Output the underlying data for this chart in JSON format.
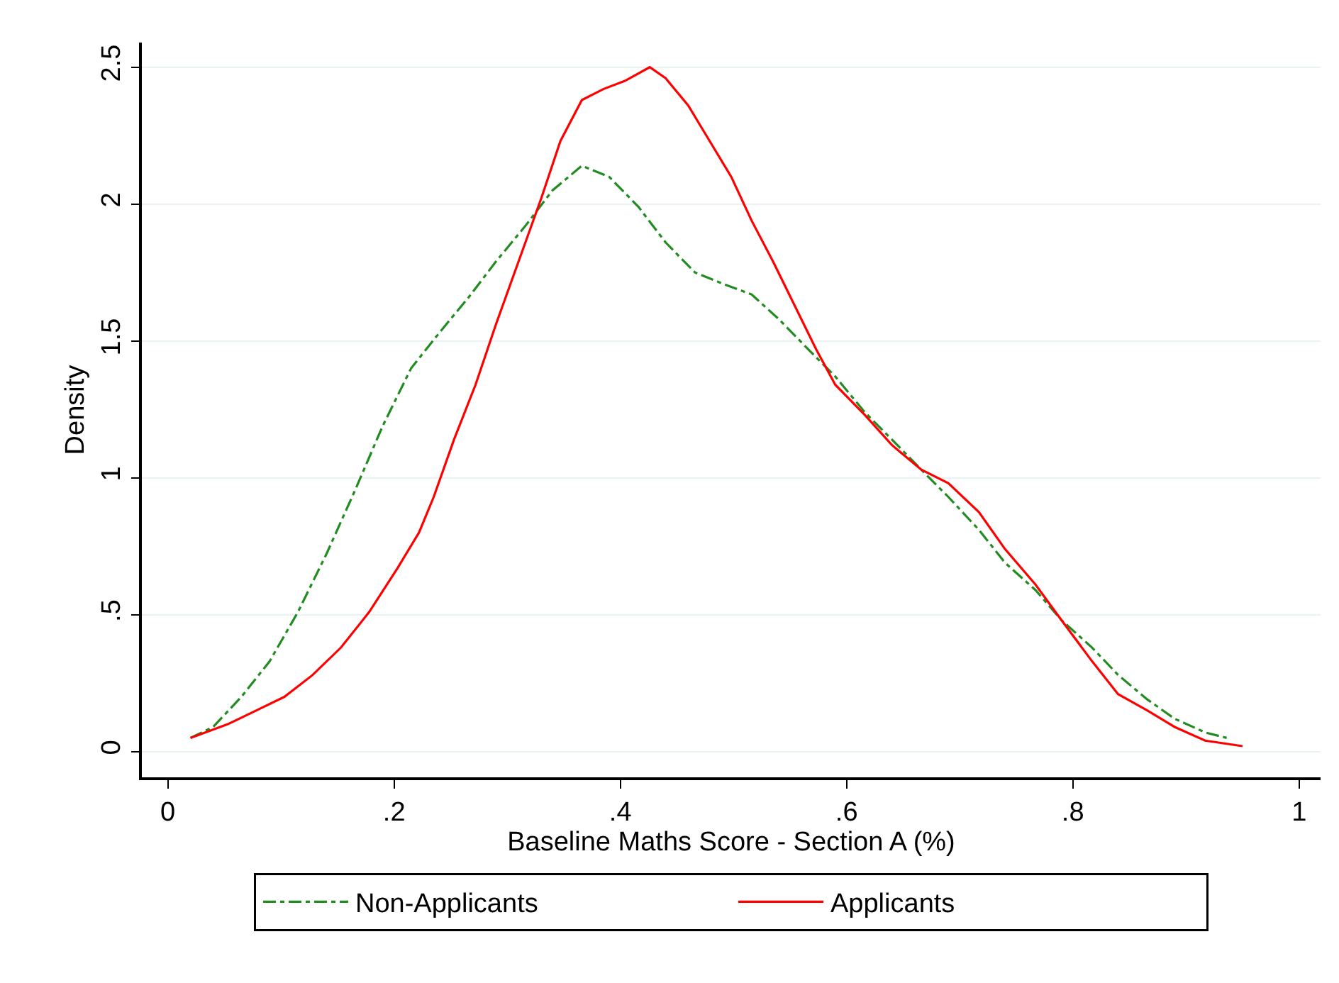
{
  "chart_data": {
    "type": "line",
    "xlabel": "Baseline Maths Score - Section A (%)",
    "ylabel": "Density",
    "xlim": [
      -0.023,
      1.019
    ],
    "ylim": [
      -0.094,
      2.59
    ],
    "xticks": [
      0,
      {
        "value": 0.2,
        "label": ".2"
      },
      {
        "value": 0.4,
        "label": ".4"
      },
      {
        "value": 0.6,
        "label": ".6"
      },
      {
        "value": 0.8,
        "label": ".8"
      },
      1
    ],
    "yticks": [
      0,
      {
        "value": 0.5,
        "label": ".5"
      },
      1,
      1.5,
      2,
      2.5
    ],
    "grid": "y",
    "legend": "bottom",
    "marker": "none",
    "series": [
      {
        "name": "Non-Applicants",
        "color": "#228b22",
        "line_style": "dashdot",
        "x": [
          0.02,
          0.04,
          0.065,
          0.09,
          0.115,
          0.14,
          0.165,
          0.19,
          0.215,
          0.24,
          0.266,
          0.29,
          0.316,
          0.34,
          0.366,
          0.39,
          0.416,
          0.44,
          0.466,
          0.49,
          0.516,
          0.54,
          0.566,
          0.59,
          0.616,
          0.64,
          0.666,
          0.69,
          0.717,
          0.74,
          0.767,
          0.79,
          0.817,
          0.84,
          0.866,
          0.89,
          0.917,
          0.936
        ],
        "values": [
          0.05,
          0.09,
          0.2,
          0.33,
          0.51,
          0.72,
          0.95,
          1.19,
          1.4,
          1.53,
          1.66,
          1.79,
          1.92,
          2.05,
          2.14,
          2.1,
          1.99,
          1.86,
          1.75,
          1.71,
          1.67,
          1.58,
          1.47,
          1.37,
          1.24,
          1.14,
          1.03,
          0.93,
          0.81,
          0.69,
          0.59,
          0.48,
          0.38,
          0.28,
          0.19,
          0.12,
          0.07,
          0.05
        ]
      },
      {
        "name": "Applicants",
        "color": "#ff0000",
        "line_style": "solid",
        "x": [
          0.02,
          0.053,
          0.078,
          0.103,
          0.128,
          0.153,
          0.178,
          0.203,
          0.222,
          0.235,
          0.253,
          0.272,
          0.29,
          0.31,
          0.33,
          0.347,
          0.366,
          0.385,
          0.404,
          0.426,
          0.44,
          0.46,
          0.479,
          0.498,
          0.516,
          0.535,
          0.554,
          0.573,
          0.59,
          0.616,
          0.64,
          0.666,
          0.69,
          0.717,
          0.74,
          0.767,
          0.79,
          0.817,
          0.84,
          0.866,
          0.89,
          0.917,
          0.95
        ],
        "values": [
          0.05,
          0.1,
          0.15,
          0.2,
          0.28,
          0.38,
          0.51,
          0.67,
          0.8,
          0.93,
          1.14,
          1.34,
          1.56,
          1.79,
          2.02,
          2.23,
          2.38,
          2.42,
          2.45,
          2.5,
          2.46,
          2.36,
          2.23,
          2.1,
          1.94,
          1.79,
          1.63,
          1.47,
          1.34,
          1.23,
          1.12,
          1.03,
          0.98,
          0.875,
          0.74,
          0.61,
          0.48,
          0.33,
          0.21,
          0.15,
          0.09,
          0.04,
          0.02
        ]
      }
    ]
  }
}
